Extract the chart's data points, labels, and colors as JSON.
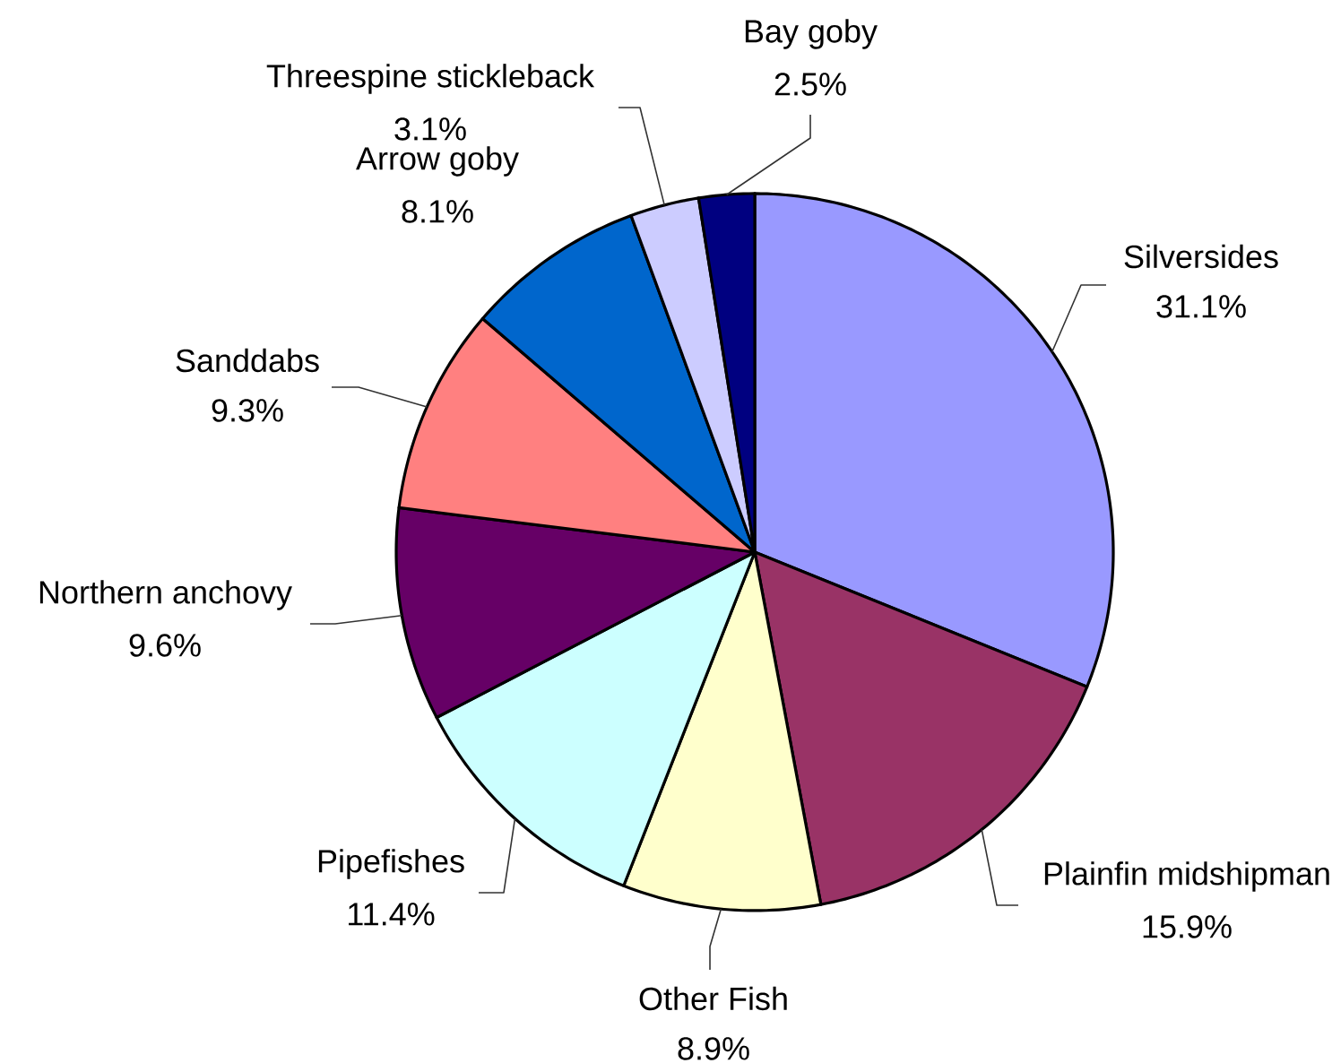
{
  "chart_data": {
    "type": "pie",
    "categories": [
      "Silversides",
      "Plainfin midshipman",
      "Other Fish",
      "Pipefishes",
      "Northern anchovy",
      "Sanddabs",
      "Arrow goby",
      "Threespine stickleback",
      "Bay goby"
    ],
    "values": [
      31.1,
      15.9,
      8.9,
      11.4,
      9.6,
      9.3,
      8.1,
      3.1,
      2.5
    ],
    "colors": [
      "#9999ff",
      "#993366",
      "#ffffcc",
      "#ccffff",
      "#660066",
      "#ff8080",
      "#0066cc",
      "#ccccff",
      "#000080"
    ],
    "value_labels": [
      "31.1%",
      "15.9%",
      "8.9%",
      "11.4%",
      "9.6%",
      "9.3%",
      "8.1%",
      "3.1%",
      "2.5%"
    ]
  }
}
